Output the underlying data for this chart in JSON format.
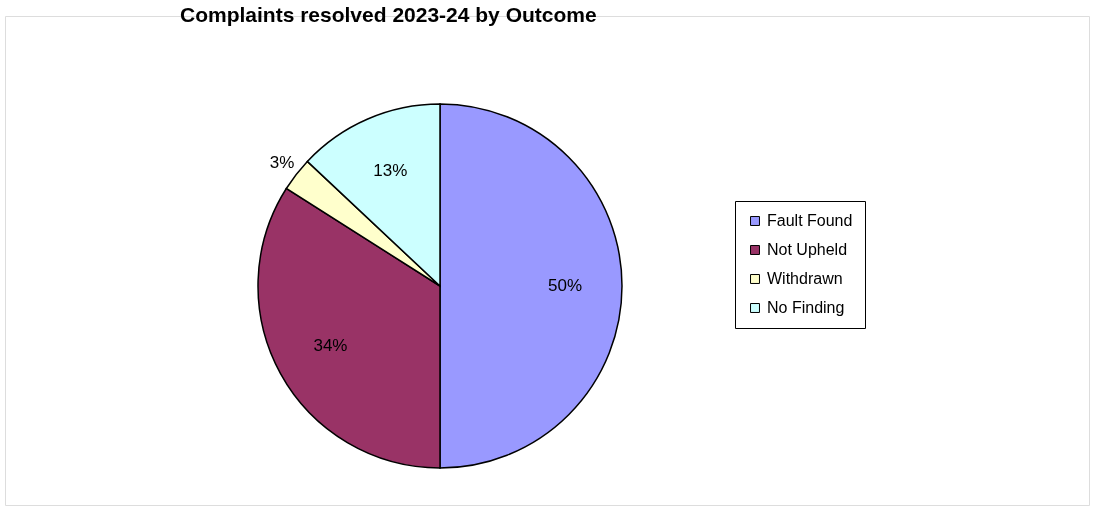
{
  "chart_data": {
    "type": "pie",
    "title": "Complaints resolved 2023-24 by Outcome",
    "categories": [
      "Fault Found",
      "Not Upheld",
      "Withdrawn",
      "No Finding"
    ],
    "values": [
      50,
      34,
      3,
      13
    ],
    "colors": [
      "#9999ff",
      "#993366",
      "#ffffcc",
      "#ccffff"
    ],
    "value_labels": [
      "50%",
      "34%",
      "3%",
      "13%"
    ],
    "legend": "right"
  }
}
